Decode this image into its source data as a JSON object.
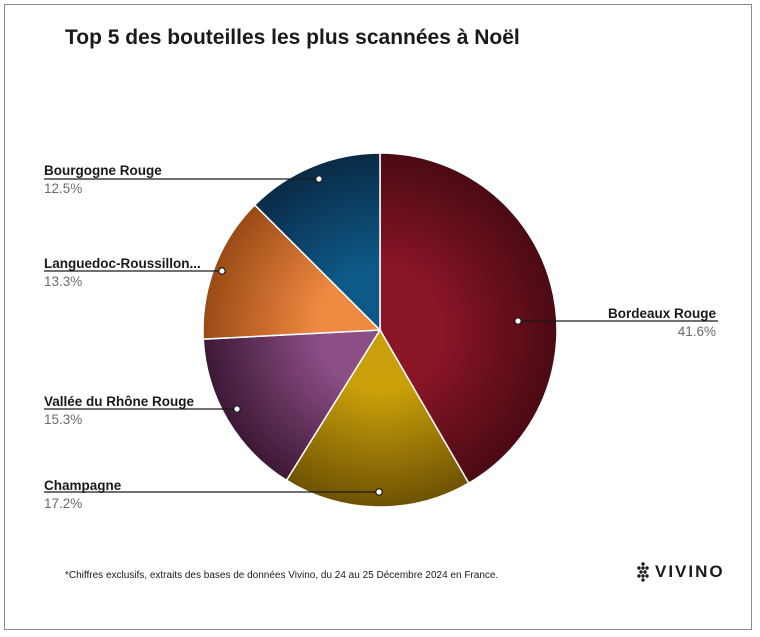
{
  "chart_data": {
    "type": "pie",
    "title": "Top 5 des bouteilles les plus scannées à Noël",
    "slices": [
      {
        "label": "Bordeaux Rouge",
        "value": 41.6,
        "value_text": "41.6%",
        "color": "#8a1525",
        "color_dark": "#4a0a14"
      },
      {
        "label": "Champagne",
        "value": 17.2,
        "value_text": "17.2%",
        "color": "#c9a009",
        "color_dark": "#6e5204"
      },
      {
        "label": "Vallée du Rhône Rouge",
        "value": 15.3,
        "value_text": "15.3%",
        "color": "#8b4e85",
        "color_dark": "#3d1835"
      },
      {
        "label": "Languedoc-Roussillon...",
        "value": 13.3,
        "value_text": "13.3%",
        "color": "#f08a42",
        "color_dark": "#9a4a16"
      },
      {
        "label": "Bourgogne Rouge",
        "value": 12.5,
        "value_text": "12.5%",
        "color": "#0d5a88",
        "color_dark": "#0a2a46"
      }
    ],
    "legend": "none"
  },
  "footnote": "*Chiffres exclusifs, extraits des bases de données Vivino, du 24 au 25 Décembre 2024 en France.",
  "brand": {
    "name": "VIVINO",
    "icon": "grape-icon"
  }
}
